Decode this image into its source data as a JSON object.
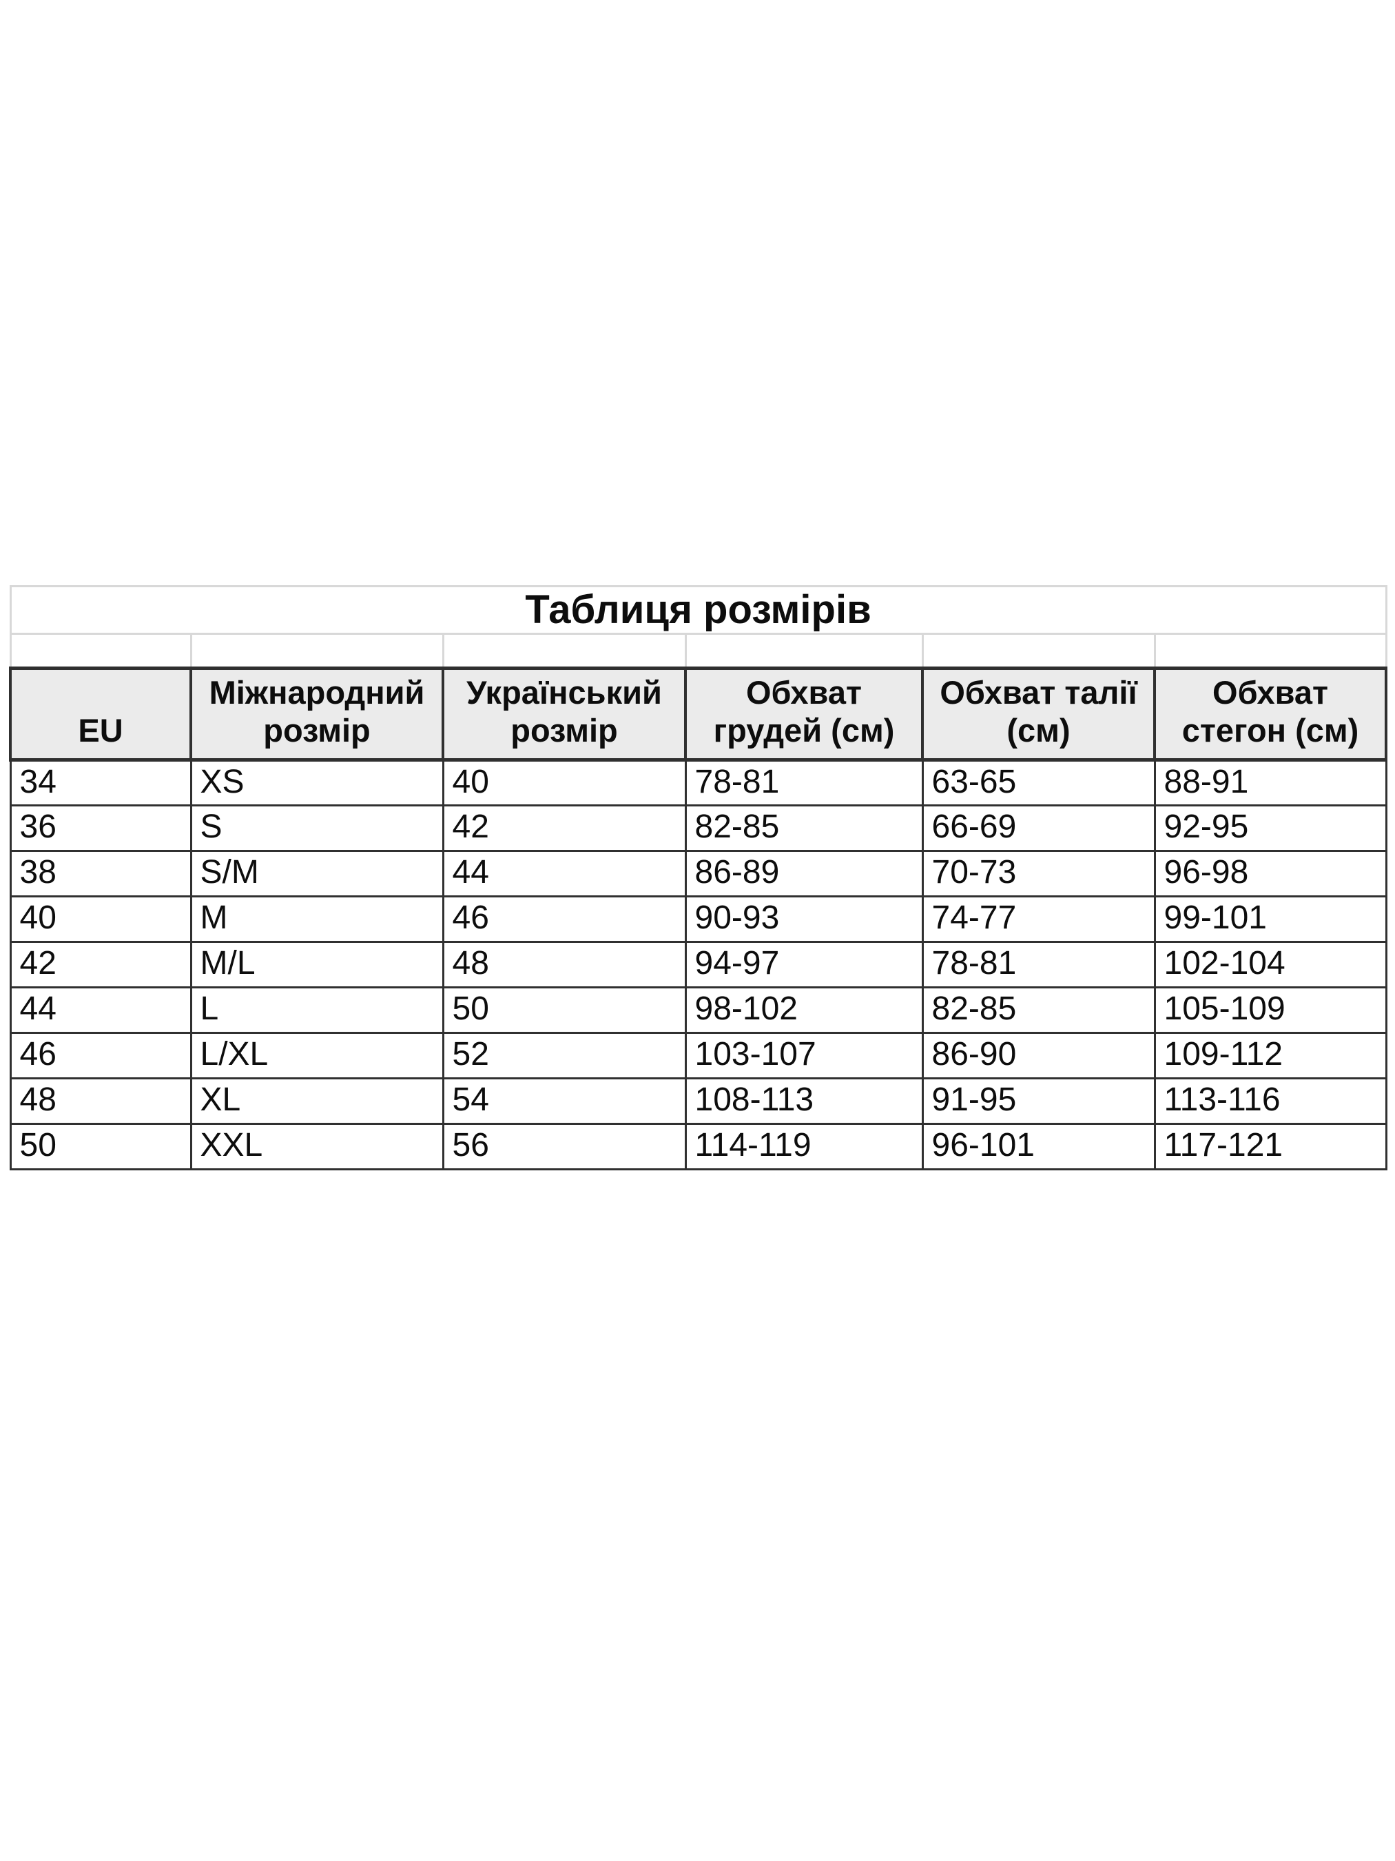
{
  "page": {
    "background": "#ffffff"
  },
  "table": {
    "title": "Таблиця розмірів",
    "columns": [
      {
        "key": "eu",
        "label": "EU"
      },
      {
        "key": "intl",
        "label": "Міжнародний\nрозмір"
      },
      {
        "key": "ua",
        "label": "Український\nрозмір"
      },
      {
        "key": "chest",
        "label": "Обхват\nгрудей (см)"
      },
      {
        "key": "waist",
        "label": "Обхват талії\n(см)"
      },
      {
        "key": "hips",
        "label": "Обхват\nстегон (см)"
      }
    ],
    "rows": [
      [
        "34",
        "XS",
        "40",
        "78-81",
        "63-65",
        "88-91"
      ],
      [
        "36",
        "S",
        "42",
        "82-85",
        "66-69",
        "92-95"
      ],
      [
        "38",
        "S/M",
        "44",
        "86-89",
        "70-73",
        "96-98"
      ],
      [
        "40",
        "M",
        "46",
        "90-93",
        "74-77",
        "99-101"
      ],
      [
        "42",
        "M/L",
        "48",
        "94-97",
        "78-81",
        "102-104"
      ],
      [
        "44",
        "L",
        "50",
        "98-102",
        "82-85",
        "105-109"
      ],
      [
        "46",
        "L/XL",
        "52",
        "103-107",
        "86-90",
        "109-112"
      ],
      [
        "48",
        "XL",
        "54",
        "108-113",
        "91-95",
        "113-116"
      ],
      [
        "50",
        "XXL",
        "56",
        "114-119",
        "96-101",
        "117-121"
      ]
    ],
    "colors": {
      "header_bg": "#ebebeb",
      "grid_dark": "#303030",
      "grid_light": "#d8d8d8",
      "text": "#0d0d0d",
      "canvas": "#ffffff"
    }
  },
  "chart_data": {
    "type": "table",
    "title": "Таблиця розмірів",
    "columns": [
      "EU",
      "Міжнародний розмір",
      "Український розмір",
      "Обхват грудей (см)",
      "Обхват талії (см)",
      "Обхват стегон (см)"
    ],
    "rows": [
      [
        "34",
        "XS",
        "40",
        "78-81",
        "63-65",
        "88-91"
      ],
      [
        "36",
        "S",
        "42",
        "82-85",
        "66-69",
        "92-95"
      ],
      [
        "38",
        "S/M",
        "44",
        "86-89",
        "70-73",
        "96-98"
      ],
      [
        "40",
        "M",
        "46",
        "90-93",
        "74-77",
        "99-101"
      ],
      [
        "42",
        "M/L",
        "48",
        "94-97",
        "78-81",
        "102-104"
      ],
      [
        "44",
        "L",
        "50",
        "98-102",
        "82-85",
        "105-109"
      ],
      [
        "46",
        "L/XL",
        "52",
        "103-107",
        "86-90",
        "109-112"
      ],
      [
        "48",
        "XL",
        "54",
        "108-113",
        "91-95",
        "113-116"
      ],
      [
        "50",
        "XXL",
        "56",
        "114-119",
        "96-101",
        "117-121"
      ]
    ],
    "layout": {
      "grid": true,
      "header_row_shaded": true,
      "title_position": "top-center",
      "body_text_align": "left",
      "header_text_align": "center"
    }
  }
}
